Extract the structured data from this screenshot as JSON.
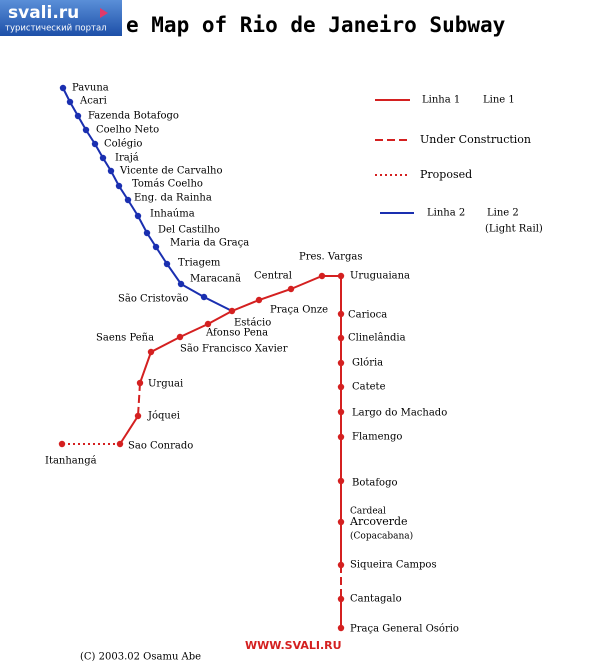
{
  "logo": {
    "name": "svali.ru",
    "tagline": "туристический портал"
  },
  "header": {
    "title": "e Map of Rio de Janeiro Subway"
  },
  "legend": [
    {
      "label": "Linha 1",
      "label_en": "Line 1"
    },
    {
      "label": "Under Construction"
    },
    {
      "label": "Proposed"
    },
    {
      "label": "Linha 2",
      "label_en": "Line 2",
      "note": "(Light Rail)"
    }
  ],
  "line_2": {
    "stations": [
      {
        "name": "Pavuna"
      },
      {
        "name": "Acari"
      },
      {
        "name": "Fazenda Botafogo"
      },
      {
        "name": "Coelho Neto"
      },
      {
        "name": "Colégio"
      },
      {
        "name": "Irajá"
      },
      {
        "name": "Vicente de Carvalho"
      },
      {
        "name": "Tomás Coelho"
      },
      {
        "name": "Eng. da Rainha"
      },
      {
        "name": "Inhaúma"
      },
      {
        "name": "Del Castilho"
      },
      {
        "name": "Maria da Graça"
      },
      {
        "name": "Triagem"
      },
      {
        "name": "Maracanã"
      },
      {
        "name": "São Cristovão"
      }
    ]
  },
  "line_1": {
    "stations": [
      {
        "name": "Estácio"
      },
      {
        "name": "Praça Onze"
      },
      {
        "name": "Central"
      },
      {
        "name": "Pres. Vargas"
      },
      {
        "name": "Uruguaiana"
      },
      {
        "name": "Carioca"
      },
      {
        "name": "Clinelândia"
      },
      {
        "name": "Glória"
      },
      {
        "name": "Catete"
      },
      {
        "name": "Largo do Machado"
      },
      {
        "name": "Flamengo"
      },
      {
        "name": "Botafogo"
      },
      {
        "name": "Arcoverde",
        "prefix": "Cardeal",
        "note": "(Copacabana)"
      },
      {
        "name": "Siqueira Campos"
      },
      {
        "name": "Cantagalo"
      },
      {
        "name": "Praça General Osório"
      }
    ]
  },
  "branch": {
    "stations": [
      {
        "name": "Afonso Pena"
      },
      {
        "name": "São Francisco Xavier"
      },
      {
        "name": "Saens Peña"
      },
      {
        "name": "Urguai"
      },
      {
        "name": "Jóquei"
      },
      {
        "name": "Sao Conrado"
      },
      {
        "name": "Itanhangá"
      }
    ]
  },
  "footer": {
    "credit": "(C) 2003.02 Osamu Abe",
    "site": "WWW.SVALI.RU"
  }
}
